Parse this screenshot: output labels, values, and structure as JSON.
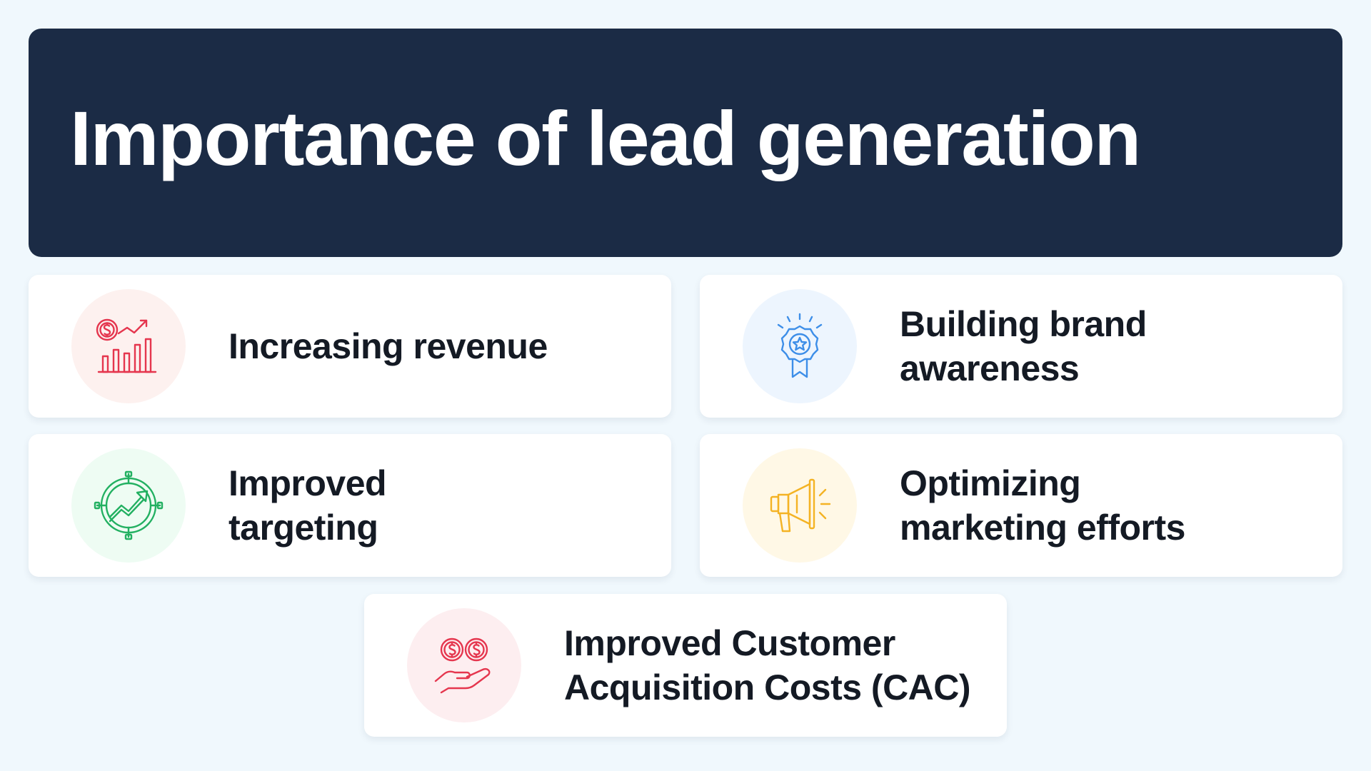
{
  "header": {
    "title": "Importance of lead generation",
    "background": "#1b2b45"
  },
  "cards": [
    {
      "id": "revenue",
      "label": "Increasing revenue",
      "icon": "revenue-chart-icon",
      "icon_color": "#e5364e",
      "icon_bg": "#fdf1ef"
    },
    {
      "id": "brand",
      "label": "Building brand awareness",
      "icon": "award-badge-icon",
      "icon_color": "#3d8ee8",
      "icon_bg": "#edf5fe"
    },
    {
      "id": "targeting",
      "label": "Improved targeting",
      "icon": "target-growth-icon",
      "icon_color": "#22b061",
      "icon_bg": "#eefcf3"
    },
    {
      "id": "marketing",
      "label": "Optimizing marketing efforts",
      "icon": "megaphone-icon",
      "icon_color": "#f4b324",
      "icon_bg": "#fff8e6"
    },
    {
      "id": "cac",
      "label": "Improved Customer Acquisition Costs (CAC)",
      "icon": "hand-coins-icon",
      "icon_color": "#e5364e",
      "icon_bg": "#fdeef0"
    }
  ]
}
